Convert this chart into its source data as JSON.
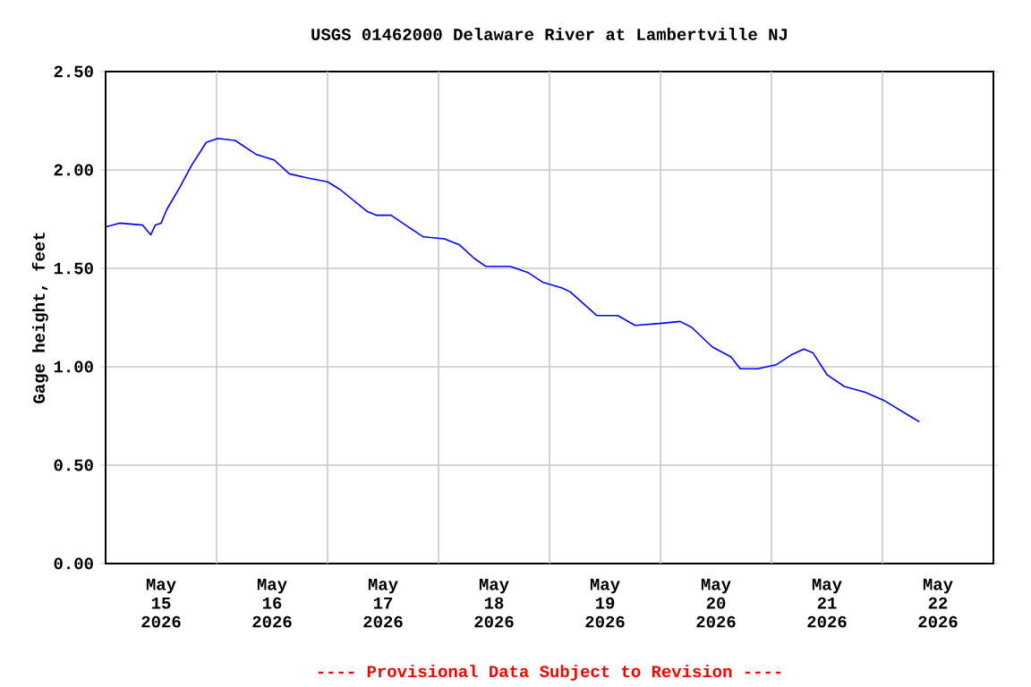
{
  "chart_data": {
    "type": "line",
    "title": "USGS 01462000 Delaware River at Lambertville NJ",
    "ylabel": "Gage height, feet",
    "annotations": [
      "---- Provisional Data Subject to Revision ----"
    ],
    "x": [
      "2026-05-15T00:00",
      "2026-05-15T03:00",
      "2026-05-15T08:00",
      "2026-05-15T09:45",
      "2026-05-15T10:45",
      "2026-05-15T12:00",
      "2026-05-15T13:15",
      "2026-05-15T16:00",
      "2026-05-15T18:30",
      "2026-05-15T21:45",
      "2026-05-16T00:15",
      "2026-05-16T04:00",
      "2026-05-16T08:30",
      "2026-05-16T12:30",
      "2026-05-16T15:45",
      "2026-05-16T19:30",
      "2026-05-17T00:00",
      "2026-05-17T02:45",
      "2026-05-17T08:30",
      "2026-05-17T10:30",
      "2026-05-17T13:45",
      "2026-05-17T17:30",
      "2026-05-17T20:45",
      "2026-05-18T01:15",
      "2026-05-18T04:30",
      "2026-05-18T07:45",
      "2026-05-18T10:15",
      "2026-05-18T15:30",
      "2026-05-18T19:15",
      "2026-05-18T22:30",
      "2026-05-19T02:45",
      "2026-05-19T04:30",
      "2026-05-19T10:15",
      "2026-05-19T14:45",
      "2026-05-19T18:30",
      "2026-05-19T23:45",
      "2026-05-20T04:15",
      "2026-05-20T06:45",
      "2026-05-20T11:15",
      "2026-05-20T15:15",
      "2026-05-20T17:15",
      "2026-05-20T21:00",
      "2026-05-21T01:00",
      "2026-05-21T04:15",
      "2026-05-21T07:00",
      "2026-05-21T09:00",
      "2026-05-21T12:00",
      "2026-05-21T15:45",
      "2026-05-21T20:15",
      "2026-05-22T00:15",
      "2026-05-22T08:00"
    ],
    "values": [
      1.71,
      1.73,
      1.72,
      1.67,
      1.72,
      1.73,
      1.8,
      1.91,
      2.02,
      2.14,
      2.16,
      2.15,
      2.08,
      2.05,
      1.98,
      1.96,
      1.94,
      1.9,
      1.79,
      1.77,
      1.77,
      1.71,
      1.66,
      1.65,
      1.62,
      1.55,
      1.51,
      1.51,
      1.48,
      1.43,
      1.4,
      1.38,
      1.26,
      1.26,
      1.21,
      1.22,
      1.23,
      1.2,
      1.1,
      1.05,
      0.99,
      0.99,
      1.01,
      1.06,
      1.09,
      1.07,
      0.96,
      0.9,
      0.87,
      0.83,
      0.72
    ],
    "color": "#0000ff",
    "xlim": [
      "2026-05-15T00:00",
      "2026-05-23T00:00"
    ],
    "xticks": [
      {
        "value": "2026-05-15T12:00",
        "label": "May 15 2026"
      },
      {
        "value": "2026-05-16T12:00",
        "label": "May 16 2026"
      },
      {
        "value": "2026-05-17T12:00",
        "label": "May 17 2026"
      },
      {
        "value": "2026-05-18T12:00",
        "label": "May 18 2026"
      },
      {
        "value": "2026-05-19T12:00",
        "label": "May 19 2026"
      },
      {
        "value": "2026-05-20T12:00",
        "label": "May 20 2026"
      },
      {
        "value": "2026-05-21T12:00",
        "label": "May 21 2026"
      },
      {
        "value": "2026-05-22T12:00",
        "label": "May 22 2026"
      },
      {
        "value": "2026-05-16T00:00",
        "label": null
      },
      {
        "value": "2026-05-17T00:00",
        "label": null
      },
      {
        "value": "2026-05-18T00:00",
        "label": null
      },
      {
        "value": "2026-05-19T00:00",
        "label": null
      },
      {
        "value": "2026-05-20T00:00",
        "label": null
      },
      {
        "value": "2026-05-21T00:00",
        "label": null
      },
      {
        "value": "2026-05-22T00:00",
        "label": null
      }
    ],
    "ylim": [
      0,
      2.5
    ],
    "yticks": [
      {
        "value": 0,
        "label": "0.00"
      },
      {
        "value": 0.5,
        "label": "0.50"
      },
      {
        "value": 1,
        "label": "1.00"
      },
      {
        "value": 1.5,
        "label": "1.50"
      },
      {
        "value": 2,
        "label": "2.00"
      },
      {
        "value": 2.5,
        "label": "2.50"
      }
    ],
    "grid": true
  }
}
